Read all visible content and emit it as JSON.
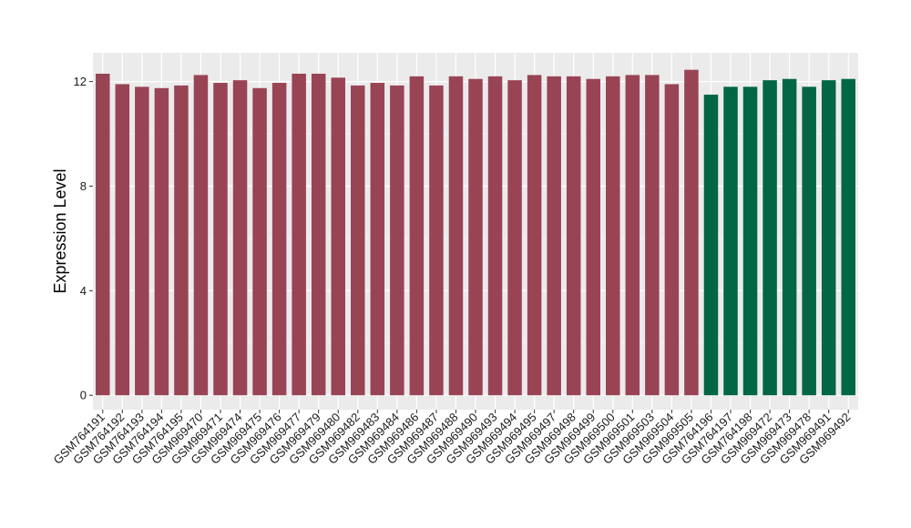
{
  "chart_data": {
    "type": "bar",
    "title": "",
    "xlabel": "",
    "ylabel": "Expression Level",
    "ylim": [
      -0.55,
      13.1
    ],
    "yticks": [
      0,
      4,
      8,
      12
    ],
    "grid": true,
    "legend": "none",
    "panel_background": "#ebebeb",
    "categories": [
      "GSM764191",
      "GSM764192",
      "GSM764193",
      "GSM764194",
      "GSM764195",
      "GSM969470",
      "GSM969471",
      "GSM969474",
      "GSM969475",
      "GSM969476",
      "GSM969477",
      "GSM969479",
      "GSM969480",
      "GSM969482",
      "GSM969483",
      "GSM969484",
      "GSM969486",
      "GSM969487",
      "GSM969488",
      "GSM969490",
      "GSM969493",
      "GSM969494",
      "GSM969495",
      "GSM969497",
      "GSM969498",
      "GSM969499",
      "GSM969500",
      "GSM969501",
      "GSM969503",
      "GSM969504",
      "GSM969505",
      "GSM764196",
      "GSM764197",
      "GSM764198",
      "GSM969472",
      "GSM969473",
      "GSM969478",
      "GSM969491",
      "GSM969492"
    ],
    "values": [
      12.3,
      11.9,
      11.8,
      11.75,
      11.85,
      12.25,
      11.95,
      12.05,
      11.75,
      11.95,
      12.3,
      12.3,
      12.15,
      11.85,
      11.95,
      11.85,
      12.2,
      11.85,
      12.2,
      12.1,
      12.2,
      12.05,
      12.25,
      12.2,
      12.2,
      12.1,
      12.2,
      12.25,
      12.25,
      11.9,
      12.45,
      11.5,
      11.8,
      11.8,
      12.05,
      12.1,
      11.8,
      12.05,
      12.1
    ],
    "groups": [
      "a",
      "a",
      "a",
      "a",
      "a",
      "a",
      "a",
      "a",
      "a",
      "a",
      "a",
      "a",
      "a",
      "a",
      "a",
      "a",
      "a",
      "a",
      "a",
      "a",
      "a",
      "a",
      "a",
      "a",
      "a",
      "a",
      "a",
      "a",
      "a",
      "a",
      "a",
      "b",
      "b",
      "b",
      "b",
      "b",
      "b",
      "b",
      "b"
    ],
    "colors": {
      "a": "#994455",
      "b": "#006644"
    }
  }
}
